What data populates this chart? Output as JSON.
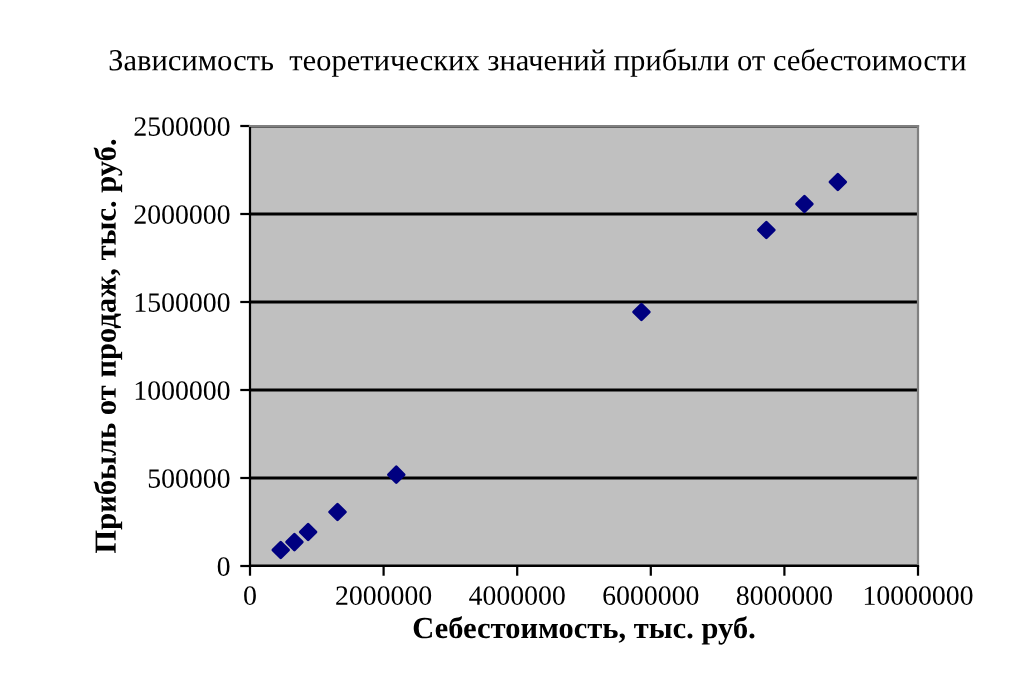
{
  "chart_data": {
    "type": "scatter",
    "title": "Зависимость  теоретических значений прибыли от себестоимости",
    "xlabel": "Себестоимость, тыс. руб.",
    "ylabel": "Прибыль от продаж, тыс. руб.",
    "x": [
      460000,
      665000,
      870000,
      1310000,
      2190000,
      5860000,
      7730000,
      8300000,
      8800000
    ],
    "series": [
      {
        "color": "#000080",
        "values": [
          91000,
          136000,
          193000,
          307000,
          519000,
          1443000,
          1909000,
          2057000,
          2182000
        ]
      }
    ],
    "xlim": [
      0,
      10000000
    ],
    "xticks": [
      0,
      2000000,
      4000000,
      6000000,
      8000000,
      10000000
    ],
    "ylim": [
      0,
      2500000
    ],
    "yticks": [
      0,
      500000,
      1000000,
      1500000,
      2000000,
      2500000
    ],
    "grid": "y",
    "marker": "diamond",
    "legend": false
  }
}
